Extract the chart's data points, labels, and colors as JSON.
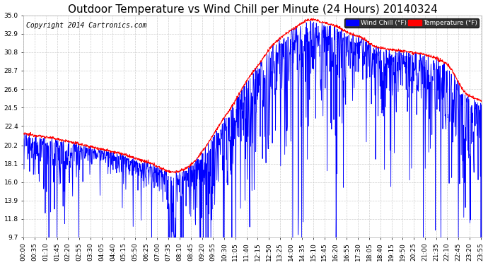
{
  "title": "Outdoor Temperature vs Wind Chill per Minute (24 Hours) 20140324",
  "copyright": "Copyright 2014 Cartronics.com",
  "legend_wind_chill": "Wind Chill (°F)",
  "legend_temperature": "Temperature (°F)",
  "wind_chill_color": "#0000FF",
  "temperature_color": "#FF0000",
  "legend_wind_chill_bg": "#0000FF",
  "legend_temperature_bg": "#FF0000",
  "background_color": "#FFFFFF",
  "grid_color": "#C8C8C8",
  "y_ticks": [
    9.7,
    11.8,
    13.9,
    16.0,
    18.1,
    20.2,
    22.4,
    24.5,
    26.6,
    28.7,
    30.8,
    32.9,
    35.0
  ],
  "y_min": 9.7,
  "y_max": 35.0,
  "title_fontsize": 11,
  "copyright_fontsize": 7,
  "tick_fontsize": 6.5
}
